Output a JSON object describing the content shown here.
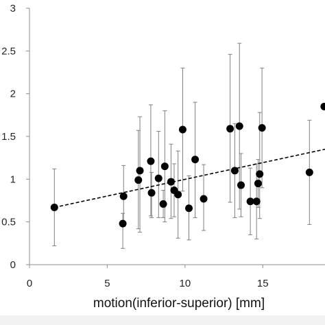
{
  "chart_data": {
    "type": "scatter",
    "xlabel": "motion(inferior-superior) [mm]",
    "ylabel": "",
    "xlim": [
      0,
      19
    ],
    "ylim": [
      0,
      3
    ],
    "x_ticks": [
      "0",
      "5",
      "10",
      "15"
    ],
    "x_tick_values": [
      0,
      5,
      10,
      15
    ],
    "y_ticks": [
      "0",
      "0.5",
      "1",
      "1.5",
      "2",
      "2.5",
      "3"
    ],
    "y_tick_values": [
      0,
      0.5,
      1,
      1.5,
      2,
      2.5,
      3
    ],
    "grid": false,
    "legend": "none",
    "marker_color": "#000000",
    "errorbar_color": "#7f7f7f",
    "trendline": {
      "style": "dashed",
      "color": "#000000",
      "x": [
        1.6,
        19
      ],
      "y": [
        0.67,
        1.35
      ]
    },
    "points": [
      {
        "x": 1.6,
        "y": 0.67,
        "lo": 0.22,
        "hi": 1.12
      },
      {
        "x": 6.0,
        "y": 0.48,
        "lo": 0.19,
        "hi": 0.6
      },
      {
        "x": 6.05,
        "y": 0.8,
        "lo": 0.45,
        "hi": 1.16
      },
      {
        "x": 7.0,
        "y": 0.99,
        "lo": 0.42,
        "hi": 1.57
      },
      {
        "x": 7.1,
        "y": 1.1,
        "lo": 0.38,
        "hi": 1.73
      },
      {
        "x": 7.8,
        "y": 1.21,
        "lo": 0.57,
        "hi": 1.87
      },
      {
        "x": 7.85,
        "y": 0.84,
        "lo": 0.55,
        "hi": 1.08
      },
      {
        "x": 8.3,
        "y": 1.01,
        "lo": 0.55,
        "hi": 1.56
      },
      {
        "x": 8.6,
        "y": 0.71,
        "lo": 0.55,
        "hi": 0.87
      },
      {
        "x": 8.7,
        "y": 1.15,
        "lo": 0.5,
        "hi": 1.8
      },
      {
        "x": 9.1,
        "y": 0.97,
        "lo": 0.54,
        "hi": 1.41
      },
      {
        "x": 9.3,
        "y": 0.87,
        "lo": 0.56,
        "hi": 1.18
      },
      {
        "x": 9.55,
        "y": 0.82,
        "lo": 0.31,
        "hi": 1.33
      },
      {
        "x": 9.85,
        "y": 1.58,
        "lo": 0.86,
        "hi": 2.3
      },
      {
        "x": 10.25,
        "y": 0.66,
        "lo": 0.29,
        "hi": 1.04
      },
      {
        "x": 10.65,
        "y": 1.23,
        "lo": 0.55,
        "hi": 1.9
      },
      {
        "x": 11.2,
        "y": 0.77,
        "lo": 0.4,
        "hi": 1.17
      },
      {
        "x": 12.9,
        "y": 1.59,
        "lo": 0.73,
        "hi": 2.46
      },
      {
        "x": 13.2,
        "y": 1.1,
        "lo": 0.55,
        "hi": 1.65
      },
      {
        "x": 13.5,
        "y": 1.62,
        "lo": 0.65,
        "hi": 2.59
      },
      {
        "x": 13.6,
        "y": 0.93,
        "lo": 0.56,
        "hi": 1.3
      },
      {
        "x": 14.2,
        "y": 0.74,
        "lo": 0.35,
        "hi": 1.13
      },
      {
        "x": 14.6,
        "y": 0.74,
        "lo": 0.3,
        "hi": 1.18
      },
      {
        "x": 14.7,
        "y": 0.95,
        "lo": 0.67,
        "hi": 1.23
      },
      {
        "x": 14.8,
        "y": 1.06,
        "lo": 0.54,
        "hi": 1.78
      },
      {
        "x": 14.95,
        "y": 1.6,
        "lo": 0.9,
        "hi": 2.3
      },
      {
        "x": 18.0,
        "y": 1.08,
        "lo": 0.47,
        "hi": 1.69
      },
      {
        "x": 18.95,
        "y": 1.85,
        "lo": 1.85,
        "hi": 1.85
      }
    ]
  }
}
